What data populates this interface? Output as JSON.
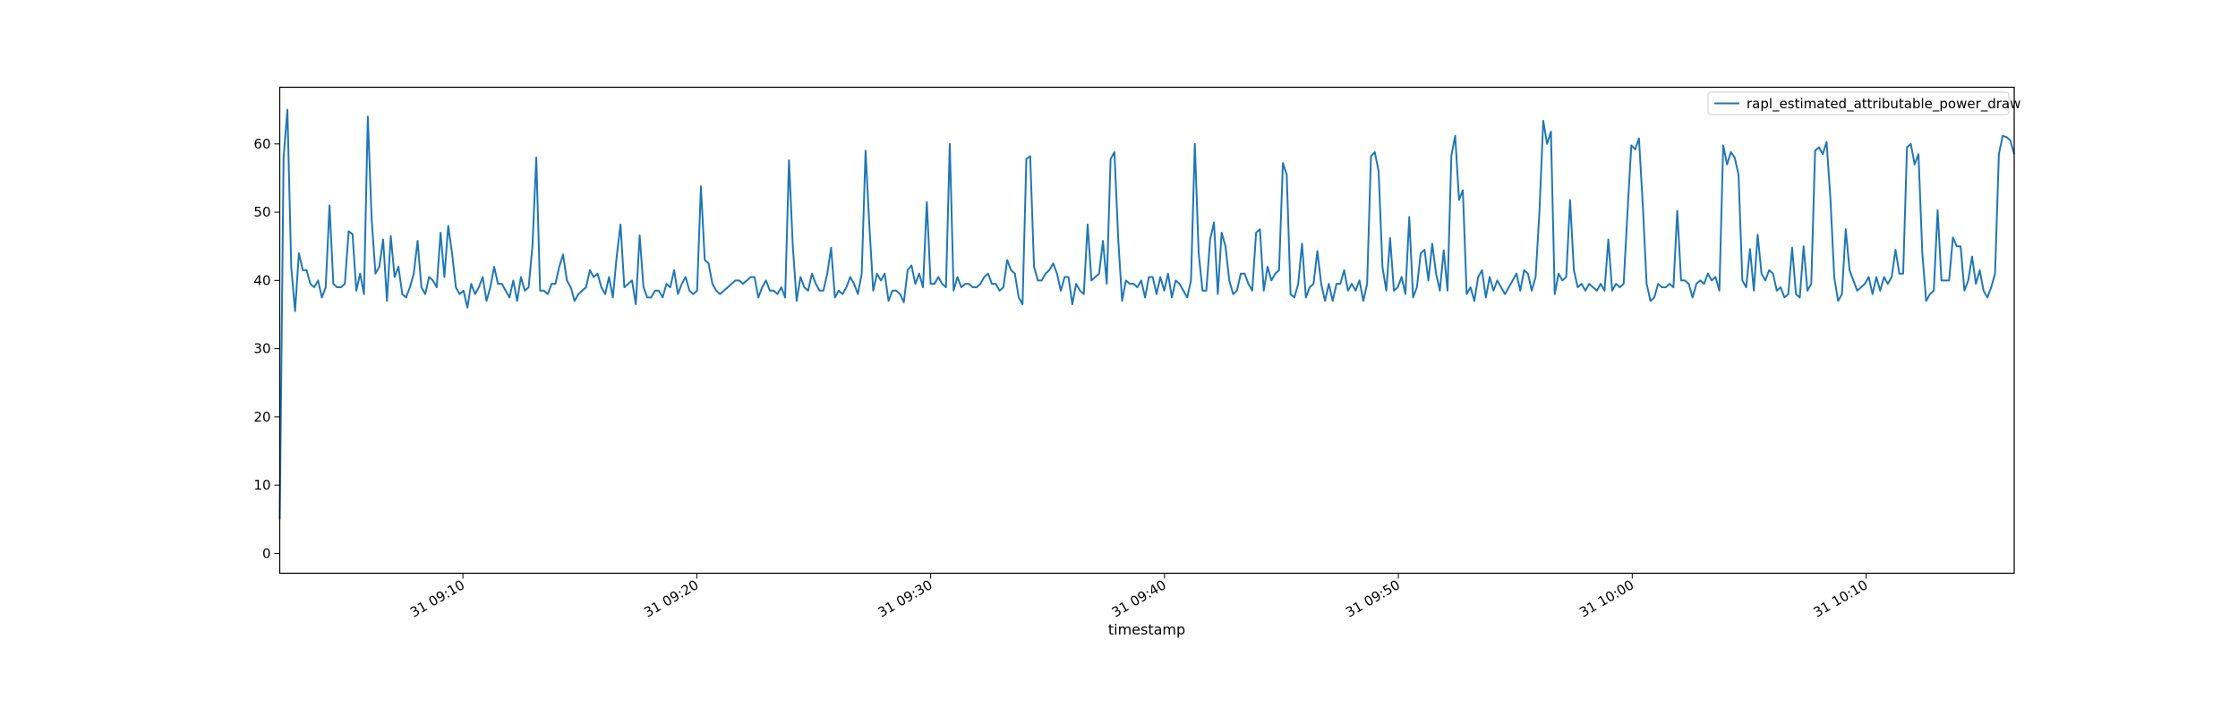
{
  "chart_data": {
    "type": "line",
    "title": "",
    "xlabel": "timestamp",
    "ylabel": "",
    "x_start": "31 09:02:10",
    "x_end": "31 10:16:20",
    "xlim": [
      "31 09:02:10",
      "31 10:16:20"
    ],
    "ylim": [
      -2.9,
      68.3
    ],
    "y_ticks": [
      0,
      10,
      20,
      30,
      40,
      50,
      60
    ],
    "x_ticks": [
      "31 09:10",
      "31 09:20",
      "31 09:30",
      "31 09:40",
      "31 09:50",
      "31 10:00",
      "31 10:10"
    ],
    "grid": false,
    "legend_position": "upper right",
    "series": [
      {
        "name": "rapl_estimated_attributable_power_draw",
        "color": "#1f77b4",
        "values": [
          5,
          58,
          65,
          42,
          35.5,
          44,
          41.5,
          41.5,
          39.5,
          39,
          40,
          37.5,
          39,
          51,
          39.5,
          39,
          39,
          39.5,
          47.2,
          46.8,
          38.5,
          41,
          38,
          64,
          49,
          41,
          42,
          46,
          37,
          46.5,
          40.5,
          42,
          38,
          37.5,
          39,
          41,
          45.8,
          39,
          38,
          40.5,
          40,
          39,
          47,
          40.5,
          48,
          44,
          39,
          38,
          38.5,
          36,
          39.5,
          38,
          39,
          40.5,
          37,
          39,
          42,
          39.5,
          39.5,
          38.5,
          37.5,
          40,
          37,
          40.5,
          38.5,
          39,
          45,
          58,
          38.5,
          38.5,
          38,
          39.5,
          39.5,
          42,
          43.8,
          40,
          39,
          37,
          38,
          38.5,
          39,
          41.5,
          40.5,
          41,
          39,
          38,
          40.5,
          37.5,
          43.5,
          48.2,
          39,
          39.5,
          40,
          36.5,
          46.6,
          39,
          37.5,
          37.5,
          38.5,
          38.5,
          37.5,
          39.5,
          39,
          41.5,
          38,
          39.5,
          40.5,
          38.5,
          38,
          38.5,
          53.8,
          43,
          42.5,
          39.5,
          38.5,
          38,
          38.5,
          39,
          39.5,
          40,
          40,
          39.5,
          40,
          40.5,
          40.5,
          37.5,
          39,
          40,
          38.5,
          38.5,
          38,
          39,
          37.5,
          57.6,
          45,
          37,
          40.5,
          39,
          38.5,
          41,
          39.5,
          38.5,
          38.5,
          41,
          44.8,
          37.5,
          38.5,
          38,
          39,
          40.5,
          39.5,
          38,
          41,
          59,
          48,
          38.5,
          41,
          40,
          41,
          37,
          38.5,
          38.5,
          38,
          36.8,
          41.5,
          42.2,
          39.5,
          41,
          39,
          51.5,
          39.5,
          39.5,
          40.5,
          39.5,
          39,
          60,
          38.5,
          40.5,
          39,
          39.5,
          39.5,
          39,
          39,
          39.5,
          40.5,
          41,
          39.5,
          39.5,
          38.5,
          39,
          43,
          41.5,
          41,
          37.5,
          36.5,
          57.8,
          58.2,
          42,
          40,
          40,
          41,
          41.5,
          42.5,
          41,
          38.5,
          40.5,
          40.5,
          36.5,
          39.5,
          38.5,
          38,
          48.2,
          40,
          40.5,
          41,
          45.8,
          39.5,
          57.8,
          58.8,
          46,
          37,
          40,
          39.5,
          39.5,
          39,
          40,
          37.5,
          40.5,
          40.5,
          38,
          40.5,
          38.5,
          41,
          37.5,
          40,
          39.5,
          38.5,
          37.5,
          40,
          60,
          44,
          38.5,
          38.5,
          46,
          48.5,
          38,
          47,
          45,
          40,
          38,
          38.5,
          41,
          41,
          39.5,
          38.5,
          47,
          47.5,
          38.5,
          42,
          40,
          41,
          41.5,
          57.2,
          55.5,
          38,
          37.5,
          39.5,
          45.4,
          37.5,
          39,
          39.5,
          44.3,
          39.5,
          37,
          39.5,
          37,
          39.5,
          39.5,
          41.5,
          38.5,
          39.5,
          38.5,
          40,
          37,
          39.5,
          58.2,
          58.8,
          56,
          42,
          38.5,
          46.2,
          38.5,
          39,
          40.5,
          38,
          49.3,
          37.5,
          39,
          44,
          44.5,
          40,
          45.4,
          41,
          38.5,
          44.4,
          38.5,
          58.3,
          61.2,
          51.8,
          53.2,
          38,
          39,
          37,
          40.5,
          41.5,
          37.5,
          40.5,
          38.5,
          40,
          39,
          38,
          39,
          40,
          41,
          38.5,
          41.5,
          41,
          38.5,
          40.5,
          50,
          63.4,
          60,
          61.8,
          38,
          41,
          40,
          40.5,
          51.8,
          41.5,
          39,
          39.5,
          38.5,
          39.5,
          39,
          38.5,
          39.5,
          38.5,
          46,
          38.5,
          39.5,
          39,
          39.5,
          50,
          59.8,
          59.2,
          60.8,
          51,
          39.5,
          37,
          37.5,
          39.5,
          39,
          39,
          39.5,
          39,
          50.2,
          40,
          40,
          39.5,
          37.5,
          39.5,
          40,
          39.5,
          41,
          40,
          40.5,
          38.5,
          59.8,
          57,
          58.8,
          58,
          55.5,
          40,
          39,
          44.6,
          38.5,
          46.7,
          41,
          40,
          41.5,
          41,
          38.5,
          39,
          37.5,
          38,
          44.8,
          38,
          37.5,
          45,
          38.5,
          39.5,
          59,
          59.5,
          58.5,
          60.3,
          52,
          40.5,
          37,
          38,
          47.5,
          41.5,
          40,
          38.5,
          39,
          39.5,
          40.5,
          38,
          40.5,
          38.5,
          40.5,
          39.5,
          40.5,
          44.5,
          41,
          41,
          59.5,
          60,
          57,
          58.5,
          44,
          37,
          38,
          38.5,
          50.3,
          40,
          40,
          40,
          46.3,
          45,
          45,
          38.5,
          40,
          43.5,
          39.5,
          41.5,
          38.5,
          37.5,
          39,
          41,
          58.5,
          61.2,
          61,
          60.5,
          58.5
        ]
      }
    ]
  }
}
